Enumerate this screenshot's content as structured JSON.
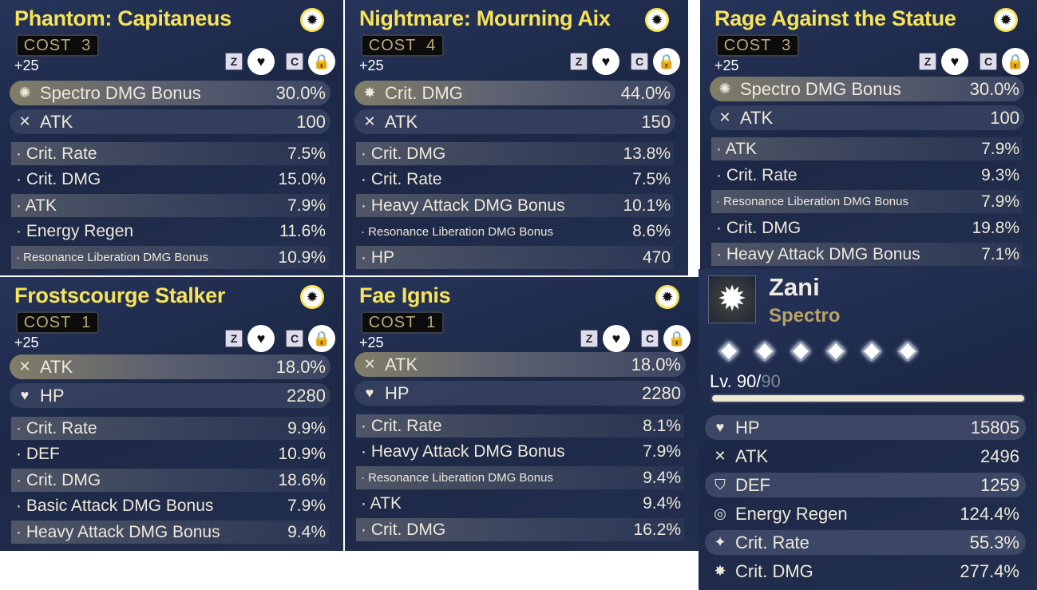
{
  "echoes": [
    {
      "title": "Phantom: Capitaneus",
      "cost": "COST  3",
      "level": "+25",
      "keys": [
        "Z",
        "C"
      ],
      "main": [
        {
          "icon": "spectro-icon",
          "label": "Spectro DMG Bonus",
          "value": "30.0%"
        },
        {
          "icon": "atk-icon",
          "label": "ATK",
          "value": "100"
        }
      ],
      "subs": [
        {
          "label": "· Crit. Rate",
          "value": "7.5%"
        },
        {
          "label": "· Crit. DMG",
          "value": "15.0%"
        },
        {
          "label": "· ATK",
          "value": "7.9%"
        },
        {
          "label": "· Energy Regen",
          "value": "11.6%"
        },
        {
          "label": "· Resonance Liberation DMG Bonus",
          "value": "10.9%"
        }
      ]
    },
    {
      "title": "Nightmare: Mourning Aix",
      "cost": "COST  4",
      "level": "+25",
      "keys": [
        "Z",
        "C"
      ],
      "main": [
        {
          "icon": "crit-dmg-icon",
          "label": "Crit. DMG",
          "value": "44.0%"
        },
        {
          "icon": "atk-icon",
          "label": "ATK",
          "value": "150"
        }
      ],
      "subs": [
        {
          "label": "· Crit. DMG",
          "value": "13.8%"
        },
        {
          "label": "· Crit. Rate",
          "value": "7.5%"
        },
        {
          "label": "· Heavy Attack DMG Bonus",
          "value": "10.1%"
        },
        {
          "label": "· Resonance Liberation DMG Bonus",
          "value": "8.6%"
        },
        {
          "label": "· HP",
          "value": "470"
        }
      ]
    },
    {
      "title": "Rage Against the Statue",
      "cost": "COST  3",
      "level": "+25",
      "keys": [
        "Z",
        "C"
      ],
      "main": [
        {
          "icon": "spectro-icon",
          "label": "Spectro DMG Bonus",
          "value": "30.0%"
        },
        {
          "icon": "atk-icon",
          "label": "ATK",
          "value": "100"
        }
      ],
      "subs": [
        {
          "label": "· ATK",
          "value": "7.9%"
        },
        {
          "label": "· Crit. Rate",
          "value": "9.3%"
        },
        {
          "label": "· Resonance Liberation DMG Bonus",
          "value": "7.9%"
        },
        {
          "label": "· Crit. DMG",
          "value": "19.8%"
        },
        {
          "label": "· Heavy Attack DMG Bonus",
          "value": "7.1%"
        }
      ]
    },
    {
      "title": "Frostscourge Stalker",
      "cost": "COST  1",
      "level": "+25",
      "keys": [
        "Z",
        "C"
      ],
      "main": [
        {
          "icon": "atk-icon",
          "label": "ATK",
          "value": "18.0%"
        },
        {
          "icon": "hp-icon",
          "label": "HP",
          "value": "2280"
        }
      ],
      "subs": [
        {
          "label": "· Crit. Rate",
          "value": "9.9%"
        },
        {
          "label": "· DEF",
          "value": "10.9%"
        },
        {
          "label": "· Crit. DMG",
          "value": "18.6%"
        },
        {
          "label": "· Basic Attack DMG Bonus",
          "value": "7.9%"
        },
        {
          "label": "· Heavy Attack DMG Bonus",
          "value": "9.4%"
        }
      ]
    },
    {
      "title": "Fae Ignis",
      "cost": "COST  1",
      "level": "+25",
      "keys": [
        "Z",
        "C"
      ],
      "main": [
        {
          "icon": "atk-icon",
          "label": "ATK",
          "value": "18.0%"
        },
        {
          "icon": "hp-icon",
          "label": "HP",
          "value": "2280"
        }
      ],
      "subs": [
        {
          "label": "· Crit. Rate",
          "value": "8.1%"
        },
        {
          "label": "· Heavy Attack DMG Bonus",
          "value": "7.9%"
        },
        {
          "label": "· Resonance Liberation DMG Bonus",
          "value": "9.4%"
        },
        {
          "label": "· ATK",
          "value": "9.4%"
        },
        {
          "label": "· Crit. DMG",
          "value": "16.2%"
        }
      ]
    }
  ],
  "character": {
    "name": "Zani",
    "element": "Spectro",
    "level": "Lv. 90/",
    "max_level": "90",
    "level_progress": 1.0,
    "sequence_nodes": 6,
    "stats": [
      {
        "icon": "hp-icon",
        "label": "HP",
        "value": "15805"
      },
      {
        "icon": "atk-icon",
        "label": "ATK",
        "value": "2496"
      },
      {
        "icon": "def-icon",
        "label": "DEF",
        "value": "1259"
      },
      {
        "icon": "energy-regen-icon",
        "label": "Energy Regen",
        "value": "124.4%"
      },
      {
        "icon": "crit-rate-icon",
        "label": "Crit. Rate",
        "value": "55.3%"
      },
      {
        "icon": "crit-dmg-icon",
        "label": "Crit. DMG",
        "value": "277.4%"
      }
    ]
  },
  "colors": {
    "title": "#f6e35a",
    "element": "#b9a266",
    "panel": "#1c2846"
  }
}
